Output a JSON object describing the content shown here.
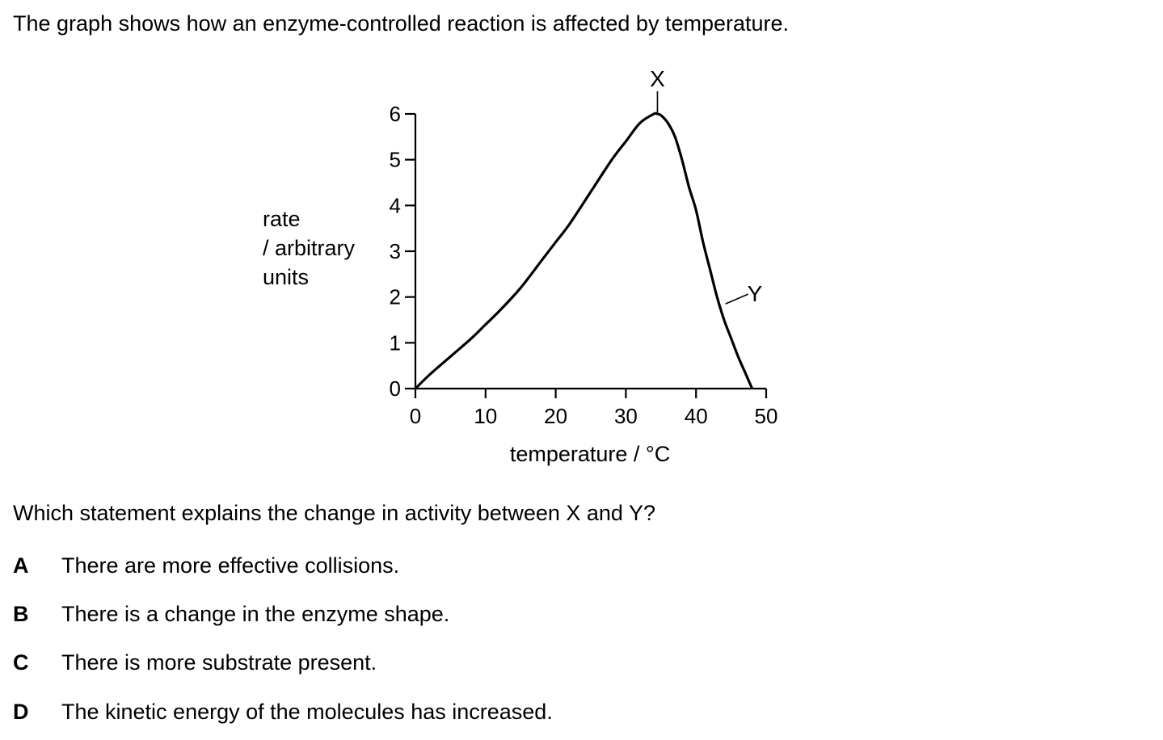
{
  "intro": "The graph shows how an enzyme-controlled reaction is affected by temperature.",
  "question": "Which statement explains the change in activity between X and Y?",
  "options": [
    {
      "letter": "A",
      "text": "There are more effective collisions."
    },
    {
      "letter": "B",
      "text": "There is a change in the enzyme shape."
    },
    {
      "letter": "C",
      "text": "There is more substrate present."
    },
    {
      "letter": "D",
      "text": "The kinetic energy of the molecules has increased."
    }
  ],
  "chart_data": {
    "type": "line",
    "ylabel_lines": [
      "rate",
      "/ arbitrary",
      "units"
    ],
    "xlabel": "temperature / °C",
    "xlim": [
      0,
      50
    ],
    "ylim": [
      0,
      6
    ],
    "xticks": [
      0,
      10,
      20,
      30,
      40,
      50
    ],
    "yticks": [
      0,
      1,
      2,
      3,
      4,
      5,
      6
    ],
    "grid": false,
    "series": [
      {
        "x": [
          0,
          2,
          5,
          8,
          10,
          12,
          15,
          18,
          20,
          22,
          25,
          28,
          30,
          32,
          34,
          34.5,
          35,
          36,
          37,
          38,
          39,
          40,
          41,
          42,
          43,
          44,
          45,
          46,
          47,
          48
        ],
        "y": [
          0,
          0.3,
          0.7,
          1.1,
          1.4,
          1.7,
          2.2,
          2.8,
          3.2,
          3.6,
          4.3,
          5.0,
          5.4,
          5.8,
          6.0,
          6.0,
          5.97,
          5.8,
          5.5,
          5.0,
          4.4,
          3.9,
          3.2,
          2.6,
          2.0,
          1.5,
          1.1,
          0.7,
          0.35,
          0
        ]
      }
    ],
    "annotations": [
      {
        "text": "X",
        "x": 34.5,
        "y": 6.0
      },
      {
        "text": "Y",
        "x": 44.2,
        "y": 1.85
      }
    ]
  }
}
